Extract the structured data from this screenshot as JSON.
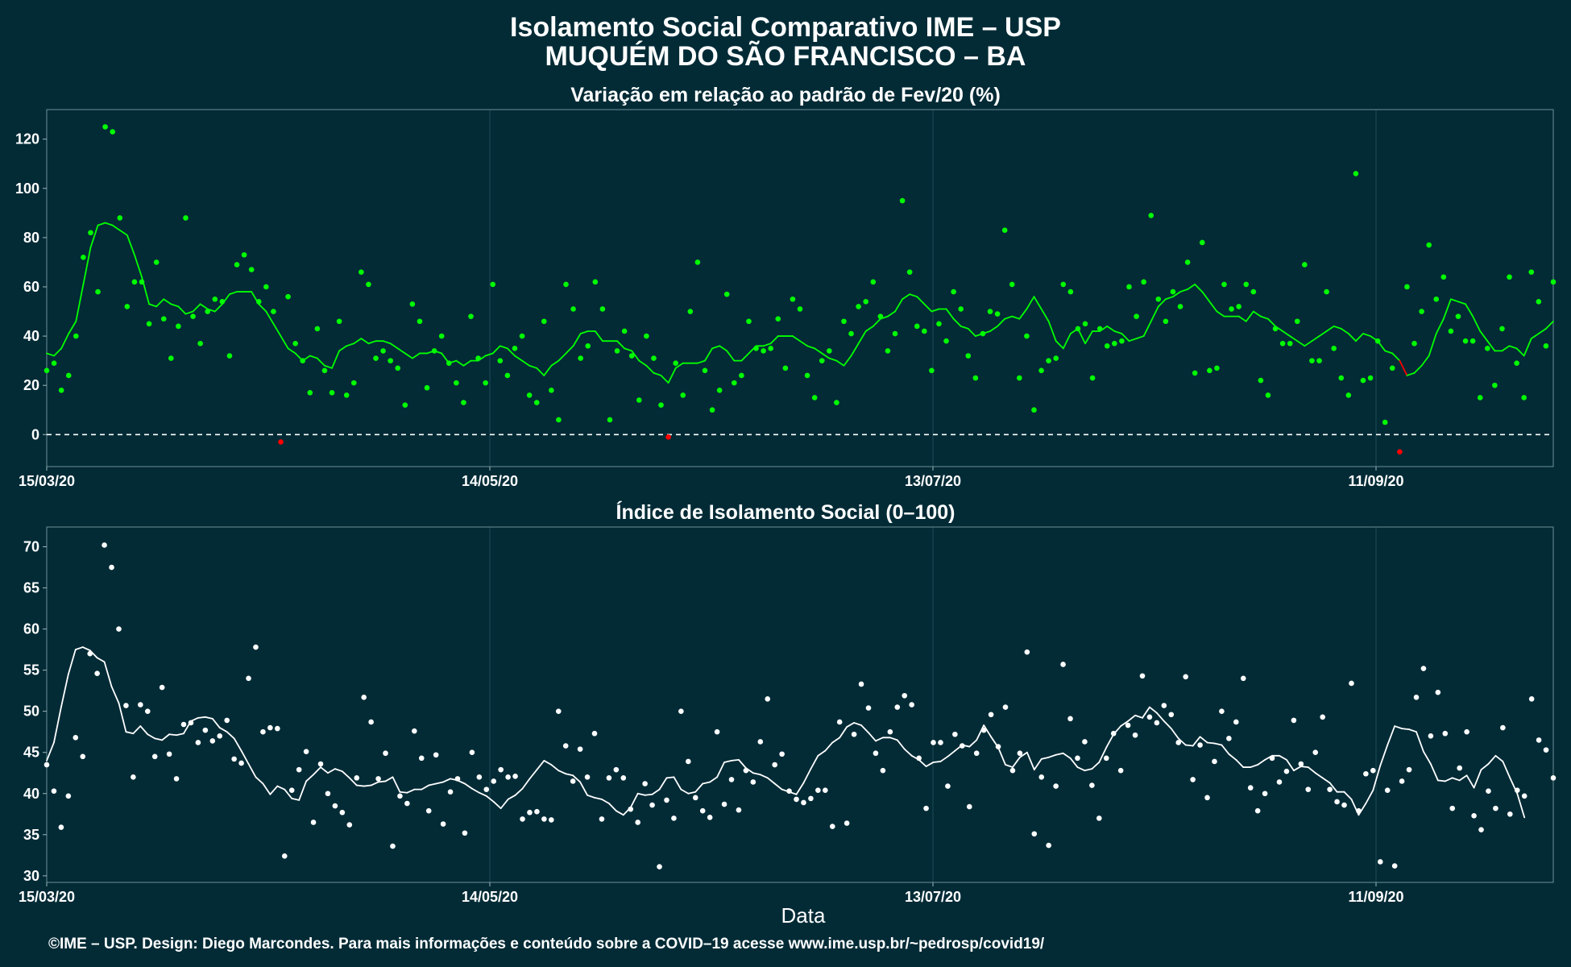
{
  "title_line1": "Isolamento Social Comparativo IME – USP",
  "title_line2": "MUQUÉM DO SÃO FRANCISCO – BA",
  "footer": "©IME – USP. Design: Diego Marcondes. Para mais informações e conteúdo sobre a COVID–19 acesse www.ime.usp.br/~pedrosp/covid19/",
  "colors": {
    "background": "#022b36",
    "grid": "#1f4a54",
    "positive": "#00ff00",
    "negative": "#ff0000",
    "index": "#ffffff"
  },
  "chart_data": [
    {
      "type": "line",
      "title": "Variação em relação ao padrão de Fev/20 (%)",
      "xlabel": "",
      "ylabel": "",
      "x_start": "15/03/20",
      "x_end": "05/10/20",
      "x_ticks": [
        "15/03/20",
        "14/05/20",
        "13/07/20",
        "11/09/20"
      ],
      "y_ticks": [
        "0",
        "20",
        "40",
        "60",
        "80",
        "100",
        "120"
      ],
      "ylim": [
        -13,
        132
      ],
      "reference_line": 0,
      "series": [
        {
          "kind": "points",
          "values": [
            26,
            29,
            18,
            24,
            40,
            72,
            82,
            58,
            125,
            123,
            88,
            52,
            62,
            62,
            45,
            70,
            47,
            31,
            44,
            88,
            48,
            37,
            50,
            55,
            54,
            32,
            69,
            73,
            67,
            54,
            60,
            50,
            -3,
            56,
            37,
            30,
            17,
            43,
            26,
            17,
            46,
            16,
            21,
            66,
            61,
            31,
            34,
            30,
            27,
            12,
            53,
            46,
            19,
            34,
            40,
            29,
            21,
            13,
            48,
            31,
            21,
            61,
            30,
            24,
            35,
            40,
            16,
            13,
            46,
            18,
            6,
            61,
            51,
            31,
            36,
            62,
            51,
            6,
            34,
            42,
            32,
            14,
            40,
            31,
            12,
            -1,
            29,
            16,
            50,
            70,
            26,
            10,
            18,
            57,
            21,
            24,
            46,
            35,
            34,
            35,
            47,
            27,
            55,
            51,
            24,
            15,
            30,
            34,
            13,
            46,
            41,
            52,
            54,
            62,
            48,
            34,
            41,
            95,
            66,
            44,
            42,
            26,
            45,
            38,
            58,
            51,
            32,
            23,
            41,
            50,
            49,
            83,
            61,
            23,
            40,
            10,
            26,
            30,
            31,
            61,
            58,
            43,
            45,
            23,
            43,
            36,
            37,
            38,
            60,
            48,
            62,
            89,
            55,
            46,
            58,
            52,
            70,
            25,
            78,
            26,
            27,
            61,
            51,
            52,
            61,
            58,
            22,
            16,
            43,
            37,
            37,
            46,
            69,
            30,
            30,
            58,
            35,
            23,
            16,
            106,
            22,
            23,
            38,
            5,
            27,
            -7,
            60,
            37,
            50,
            77,
            55,
            64,
            42,
            48,
            38,
            38,
            15,
            35,
            20,
            43,
            64,
            29,
            15,
            66,
            54,
            36,
            62
          ]
        },
        {
          "kind": "moving-average",
          "values": [
            33,
            32,
            35,
            41,
            46,
            61,
            76,
            85,
            86,
            85,
            83,
            81,
            73,
            64,
            53,
            52,
            55,
            53,
            52,
            49,
            50,
            53,
            51,
            50,
            53,
            57,
            58,
            58,
            58,
            53,
            50,
            45,
            40,
            35,
            33,
            30,
            32,
            31,
            28,
            27,
            34,
            36,
            37,
            39,
            37,
            38,
            38,
            37,
            35,
            33,
            31,
            33,
            33,
            34,
            33,
            29,
            30,
            28,
            30,
            30,
            32,
            33,
            36,
            35,
            32,
            30,
            28,
            27,
            24,
            28,
            30,
            33,
            36,
            41,
            42,
            42,
            38,
            38,
            38,
            35,
            34,
            30,
            28,
            25,
            24,
            21,
            27,
            29,
            29,
            29,
            30,
            35,
            36,
            34,
            30,
            30,
            33,
            36,
            36,
            37,
            40,
            40,
            40,
            38,
            36,
            35,
            33,
            31,
            30,
            28,
            32,
            37,
            42,
            44,
            47,
            48,
            50,
            55,
            57,
            56,
            53,
            50,
            51,
            51,
            47,
            44,
            43,
            40,
            41,
            42,
            44,
            47,
            48,
            47,
            51,
            56,
            51,
            46,
            38,
            35,
            41,
            43,
            37,
            42,
            42,
            44,
            42,
            41,
            38,
            39,
            40,
            46,
            52,
            55,
            56,
            58,
            59,
            61,
            58,
            54,
            50,
            48,
            48,
            48,
            46,
            50,
            48,
            47,
            44,
            42,
            40,
            38,
            36,
            38,
            40,
            42,
            44,
            43,
            41,
            38,
            41,
            40,
            38,
            34,
            33,
            30,
            24,
            25,
            28,
            32,
            41,
            47,
            55,
            54,
            53,
            48,
            42,
            38,
            34,
            34,
            36,
            35,
            32,
            39,
            41,
            43,
            46
          ]
        }
      ]
    },
    {
      "type": "line",
      "title": "Índice de Isolamento Social (0–100)",
      "xlabel": "Data",
      "ylabel": "",
      "x_start": "15/03/20",
      "x_end": "05/10/20",
      "x_ticks": [
        "15/03/20",
        "14/05/20",
        "13/07/20",
        "11/09/20"
      ],
      "y_ticks": [
        "30",
        "35",
        "40",
        "45",
        "50",
        "55",
        "60",
        "65",
        "70"
      ],
      "ylim": [
        29.2,
        72.4
      ],
      "series": [
        {
          "kind": "points",
          "values": [
            43.5,
            40.3,
            35.9,
            39.7,
            46.8,
            44.5,
            57,
            54.6,
            70.2,
            67.5,
            60,
            50.7,
            42,
            50.8,
            50,
            44.5,
            52.9,
            44.8,
            41.8,
            48.4,
            48.6,
            46.2,
            47.7,
            46.4,
            47,
            48.9,
            44.2,
            43.7,
            54,
            57.8,
            47.5,
            48,
            47.9,
            32.4,
            40.4,
            42.9,
            45.1,
            36.5,
            43.6,
            40,
            38.5,
            37.7,
            36.2,
            41.9,
            51.7,
            48.7,
            41.8,
            44.9,
            33.6,
            39.7,
            38.8,
            47.6,
            44.3,
            37.9,
            44.7,
            36.3,
            40.2,
            41.8,
            35.2,
            45,
            42,
            40.5,
            41.5,
            42.9,
            42,
            42.1,
            36.9,
            37.7,
            37.8,
            36.9,
            36.8,
            50,
            45.8,
            41.5,
            45.4,
            42,
            47.3,
            36.9,
            41.9,
            42.9,
            41.9,
            38.1,
            36.5,
            41.2,
            38.6,
            31.1,
            39.2,
            37,
            50,
            43.9,
            39.5,
            37.9,
            37.1,
            47.5,
            38.7,
            41.7,
            38,
            42.8,
            41.4,
            46.3,
            51.5,
            43.5,
            44.8,
            40.3,
            39.3,
            38.9,
            39.4,
            40.4,
            40.4,
            36,
            48.7,
            36.4,
            47.2,
            53.3,
            50.4,
            44.9,
            42.8,
            47.5,
            50.5,
            51.9,
            50.8,
            44.3,
            38.2,
            46.2,
            46.2,
            40.9,
            47.2,
            45.8,
            38.4,
            44.9,
            47.7,
            49.6,
            45.7,
            50.5,
            42.8,
            44.9,
            57.2,
            35.1,
            42,
            33.7,
            40.9,
            55.7,
            49.1,
            44.3,
            46.3,
            41,
            37,
            44.3,
            47.3,
            42.8,
            48.3,
            47.1,
            54.3,
            49.3,
            48.6,
            50.7,
            49.6,
            46.2,
            54.2,
            41.7,
            45.9,
            39.5,
            43.9,
            50,
            46.7,
            48.7,
            54,
            40.7,
            37.9,
            40,
            44.3,
            41.4,
            42.7,
            48.9,
            43.6,
            40.5,
            45,
            49.3,
            40.5,
            39,
            38.6,
            53.4,
            37.9,
            42.4,
            42.8,
            31.7,
            40.4,
            31.2,
            41.5,
            42.9,
            51.7,
            55.2,
            47,
            52.3,
            47.3,
            38.2,
            43.1,
            47.5,
            37.3,
            35.6,
            40.3,
            38.2,
            48,
            37.5,
            40.4,
            39.7,
            51.5,
            46.5,
            45.3,
            41.9
          ]
        },
        {
          "kind": "moving-average",
          "values": [
            44,
            46.2,
            50.5,
            54.5,
            57.5,
            57.8,
            57.4,
            56.5,
            56,
            53,
            51,
            47.5,
            47.3,
            48.2,
            47.2,
            46.7,
            46.5,
            47.2,
            47.1,
            47.3,
            48.8,
            49.2,
            49.3,
            49.1,
            48,
            47.5,
            46.7,
            45.2,
            43.6,
            42,
            41.2,
            39.9,
            40.9,
            40.5,
            39.4,
            39.2,
            41.5,
            42.3,
            43.2,
            42.5,
            43,
            42.7,
            41.9,
            41,
            40.9,
            41,
            41.4,
            41.5,
            42,
            40.2,
            40.1,
            40.5,
            40.5,
            41,
            41.2,
            41.4,
            41.8,
            41.6,
            41.2,
            40.6,
            40.1,
            39.7,
            39,
            38.2,
            39.3,
            39.8,
            40.6,
            41.8,
            42.9,
            44,
            43.5,
            42.8,
            42.4,
            42.2,
            41.4,
            39.8,
            39.5,
            39.3,
            38.8,
            37.9,
            37.4,
            38.3,
            40,
            39.8,
            39.9,
            40.5,
            41.9,
            42,
            40.5,
            40,
            40.2,
            41.2,
            41.4,
            42,
            43.8,
            44,
            44.1,
            43.1,
            42.5,
            42.3,
            41.9,
            41.2,
            40.5,
            40.2,
            39.9,
            41.3,
            43,
            44.6,
            45.2,
            46.2,
            46.8,
            48.1,
            48.6,
            48.3,
            47.4,
            46.4,
            46.8,
            46.8,
            46.5,
            45.4,
            44.6,
            44.1,
            43.3,
            43.8,
            43.9,
            44.5,
            45.2,
            45.9,
            45.7,
            46.5,
            48.3,
            46.9,
            45.6,
            43.5,
            43.2,
            44.4,
            45,
            42.9,
            44.2,
            44.4,
            44.7,
            44.9,
            44.3,
            43.2,
            42.8,
            43,
            43.8,
            45.6,
            47.2,
            48.2,
            48.8,
            49.5,
            49.2,
            50.5,
            49.8,
            48.8,
            47.9,
            46.7,
            45.9,
            45.8,
            46.9,
            46.2,
            46.1,
            45.9,
            44.8,
            44.1,
            43.2,
            43.2,
            43.5,
            44.1,
            44.6,
            44.6,
            44.1,
            42.8,
            43.3,
            43.2,
            42.5,
            41.9,
            41.3,
            40.2,
            40.2,
            39.3,
            37.4,
            38.8,
            40.4,
            43.4,
            45.9,
            48.2,
            47.9,
            47.8,
            47.5,
            45.1,
            43.6,
            41.6,
            41.5,
            41.9,
            41.6,
            42.2,
            40.7,
            42.9,
            43.6,
            44.6,
            43.9,
            41.9,
            40,
            37.1
          ]
        }
      ]
    }
  ]
}
